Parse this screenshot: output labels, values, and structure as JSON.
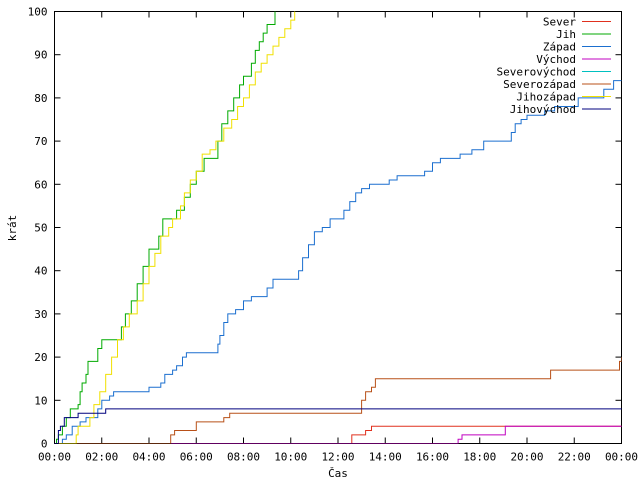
{
  "chart_data": {
    "type": "line",
    "title": "",
    "xlabel": "Čas",
    "ylabel": "krát",
    "xlim": [
      "00:00",
      "24:00"
    ],
    "ylim": [
      0,
      100
    ],
    "grid": false,
    "legend_position": "top-right",
    "x_tick_labels": [
      "00:00",
      "02:00",
      "04:00",
      "06:00",
      "08:00",
      "10:00",
      "12:00",
      "14:00",
      "16:00",
      "18:00",
      "20:00",
      "22:00",
      "00:00"
    ],
    "y_tick_labels": [
      "0",
      "10",
      "20",
      "30",
      "40",
      "50",
      "60",
      "70",
      "80",
      "90",
      "100"
    ],
    "series": [
      {
        "name": "Sever",
        "color": "#e0301e",
        "points": [
          [
            "00:00",
            0
          ],
          [
            "12:30",
            0
          ],
          [
            "12:35",
            2
          ],
          [
            "13:05",
            2
          ],
          [
            "13:10",
            3
          ],
          [
            "13:20",
            3
          ],
          [
            "13:25",
            4
          ],
          [
            "24:00",
            4
          ]
        ]
      },
      {
        "name": "Jih",
        "color": "#00aa00",
        "points": [
          [
            "00:00",
            0
          ],
          [
            "00:05",
            1
          ],
          [
            "00:10",
            2
          ],
          [
            "00:20",
            4
          ],
          [
            "00:30",
            6
          ],
          [
            "00:40",
            8
          ],
          [
            "01:00",
            9
          ],
          [
            "01:05",
            12
          ],
          [
            "01:10",
            14
          ],
          [
            "01:20",
            16
          ],
          [
            "01:25",
            19
          ],
          [
            "01:45",
            19
          ],
          [
            "01:50",
            22
          ],
          [
            "02:00",
            24
          ],
          [
            "02:45",
            24
          ],
          [
            "02:50",
            27
          ],
          [
            "03:00",
            30
          ],
          [
            "03:15",
            33
          ],
          [
            "03:30",
            37
          ],
          [
            "03:45",
            41
          ],
          [
            "04:00",
            45
          ],
          [
            "04:15",
            45
          ],
          [
            "04:25",
            48
          ],
          [
            "04:35",
            52
          ],
          [
            "05:05",
            52
          ],
          [
            "05:10",
            54
          ],
          [
            "05:20",
            54
          ],
          [
            "05:30",
            57
          ],
          [
            "05:45",
            60
          ],
          [
            "06:00",
            63
          ],
          [
            "06:10",
            63
          ],
          [
            "06:20",
            66
          ],
          [
            "06:45",
            66
          ],
          [
            "06:55",
            70
          ],
          [
            "07:05",
            74
          ],
          [
            "07:20",
            77
          ],
          [
            "07:35",
            80
          ],
          [
            "07:50",
            83
          ],
          [
            "08:00",
            85
          ],
          [
            "08:20",
            88
          ],
          [
            "08:30",
            91
          ],
          [
            "08:40",
            93
          ],
          [
            "08:50",
            95
          ],
          [
            "09:00",
            97
          ],
          [
            "09:20",
            100
          ]
        ]
      },
      {
        "name": "Západ",
        "color": "#1b6fcf",
        "points": [
          [
            "00:00",
            0
          ],
          [
            "00:20",
            1
          ],
          [
            "00:30",
            2
          ],
          [
            "00:45",
            4
          ],
          [
            "01:00",
            4
          ],
          [
            "01:05",
            5
          ],
          [
            "01:20",
            6
          ],
          [
            "01:40",
            6
          ],
          [
            "01:50",
            8
          ],
          [
            "02:00",
            10
          ],
          [
            "02:20",
            11
          ],
          [
            "02:30",
            12
          ],
          [
            "03:50",
            12
          ],
          [
            "04:00",
            13
          ],
          [
            "04:30",
            14
          ],
          [
            "04:40",
            16
          ],
          [
            "05:00",
            17
          ],
          [
            "05:10",
            18
          ],
          [
            "05:25",
            20
          ],
          [
            "05:35",
            21
          ],
          [
            "06:50",
            21
          ],
          [
            "06:55",
            23
          ],
          [
            "07:00",
            25
          ],
          [
            "07:10",
            28
          ],
          [
            "07:20",
            30
          ],
          [
            "07:40",
            31
          ],
          [
            "08:00",
            33
          ],
          [
            "08:20",
            34
          ],
          [
            "08:50",
            34
          ],
          [
            "09:00",
            36
          ],
          [
            "09:15",
            38
          ],
          [
            "10:15",
            38
          ],
          [
            "10:20",
            40
          ],
          [
            "10:30",
            43
          ],
          [
            "10:45",
            46
          ],
          [
            "11:00",
            49
          ],
          [
            "11:20",
            50
          ],
          [
            "11:40",
            52
          ],
          [
            "12:00",
            52
          ],
          [
            "12:15",
            54
          ],
          [
            "12:30",
            56
          ],
          [
            "12:45",
            58
          ],
          [
            "13:00",
            59
          ],
          [
            "13:20",
            60
          ],
          [
            "14:00",
            60
          ],
          [
            "14:10",
            61
          ],
          [
            "14:30",
            62
          ],
          [
            "15:30",
            62
          ],
          [
            "15:40",
            63
          ],
          [
            "16:00",
            65
          ],
          [
            "16:20",
            66
          ],
          [
            "17:00",
            66
          ],
          [
            "17:10",
            67
          ],
          [
            "17:40",
            68
          ],
          [
            "18:00",
            68
          ],
          [
            "18:10",
            70
          ],
          [
            "19:10",
            70
          ],
          [
            "19:20",
            72
          ],
          [
            "19:30",
            74
          ],
          [
            "19:45",
            75
          ],
          [
            "20:00",
            76
          ],
          [
            "20:30",
            76
          ],
          [
            "20:45",
            77
          ],
          [
            "21:10",
            78
          ],
          [
            "22:00",
            78
          ],
          [
            "22:10",
            80
          ],
          [
            "23:00",
            80
          ],
          [
            "23:15",
            82
          ],
          [
            "23:40",
            84
          ],
          [
            "24:00",
            84
          ]
        ]
      },
      {
        "name": "Východ",
        "color": "#c000c0",
        "points": [
          [
            "00:00",
            0
          ],
          [
            "17:00",
            0
          ],
          [
            "17:05",
            1
          ],
          [
            "17:15",
            2
          ],
          [
            "19:00",
            2
          ],
          [
            "19:05",
            4
          ],
          [
            "24:00",
            4
          ]
        ]
      },
      {
        "name": "Severovýchod",
        "color": "#00c0c0",
        "points": []
      },
      {
        "name": "Severozápad",
        "color": "#b85018",
        "points": [
          [
            "00:00",
            0
          ],
          [
            "04:50",
            0
          ],
          [
            "04:55",
            2
          ],
          [
            "05:05",
            3
          ],
          [
            "05:50",
            3
          ],
          [
            "06:00",
            5
          ],
          [
            "07:00",
            5
          ],
          [
            "07:10",
            6
          ],
          [
            "07:25",
            7
          ],
          [
            "12:45",
            7
          ],
          [
            "13:00",
            10
          ],
          [
            "13:10",
            12
          ],
          [
            "13:25",
            13
          ],
          [
            "13:35",
            15
          ],
          [
            "20:55",
            15
          ],
          [
            "21:00",
            17
          ],
          [
            "23:45",
            17
          ],
          [
            "23:55",
            19
          ],
          [
            "24:00",
            20
          ]
        ]
      },
      {
        "name": "Jihozápad",
        "color": "#f0e000",
        "points": [
          [
            "00:00",
            0
          ],
          [
            "00:50",
            0
          ],
          [
            "00:55",
            2
          ],
          [
            "01:00",
            4
          ],
          [
            "01:20",
            4
          ],
          [
            "01:30",
            6
          ],
          [
            "01:40",
            9
          ],
          [
            "01:55",
            12
          ],
          [
            "02:10",
            16
          ],
          [
            "02:25",
            20
          ],
          [
            "02:40",
            24
          ],
          [
            "02:55",
            27
          ],
          [
            "03:10",
            30
          ],
          [
            "03:30",
            33
          ],
          [
            "03:45",
            37
          ],
          [
            "04:00",
            41
          ],
          [
            "04:15",
            44
          ],
          [
            "04:30",
            48
          ],
          [
            "04:50",
            50
          ],
          [
            "05:00",
            52
          ],
          [
            "05:20",
            55
          ],
          [
            "05:30",
            58
          ],
          [
            "05:45",
            61
          ],
          [
            "06:00",
            63
          ],
          [
            "06:15",
            67
          ],
          [
            "06:35",
            68
          ],
          [
            "06:50",
            70
          ],
          [
            "07:10",
            73
          ],
          [
            "07:30",
            75
          ],
          [
            "07:45",
            78
          ],
          [
            "08:00",
            80
          ],
          [
            "08:15",
            83
          ],
          [
            "08:30",
            86
          ],
          [
            "08:45",
            88
          ],
          [
            "09:00",
            90
          ],
          [
            "09:15",
            92
          ],
          [
            "09:30",
            94
          ],
          [
            "09:45",
            96
          ],
          [
            "10:00",
            98
          ],
          [
            "10:10",
            100
          ]
        ]
      },
      {
        "name": "Jihovýchod",
        "color": "#00007f",
        "points": [
          [
            "00:00",
            0
          ],
          [
            "00:10",
            3
          ],
          [
            "00:15",
            4
          ],
          [
            "00:25",
            6
          ],
          [
            "00:35",
            6
          ],
          [
            "01:00",
            7
          ],
          [
            "02:10",
            8
          ],
          [
            "24:00",
            8
          ]
        ]
      }
    ]
  }
}
